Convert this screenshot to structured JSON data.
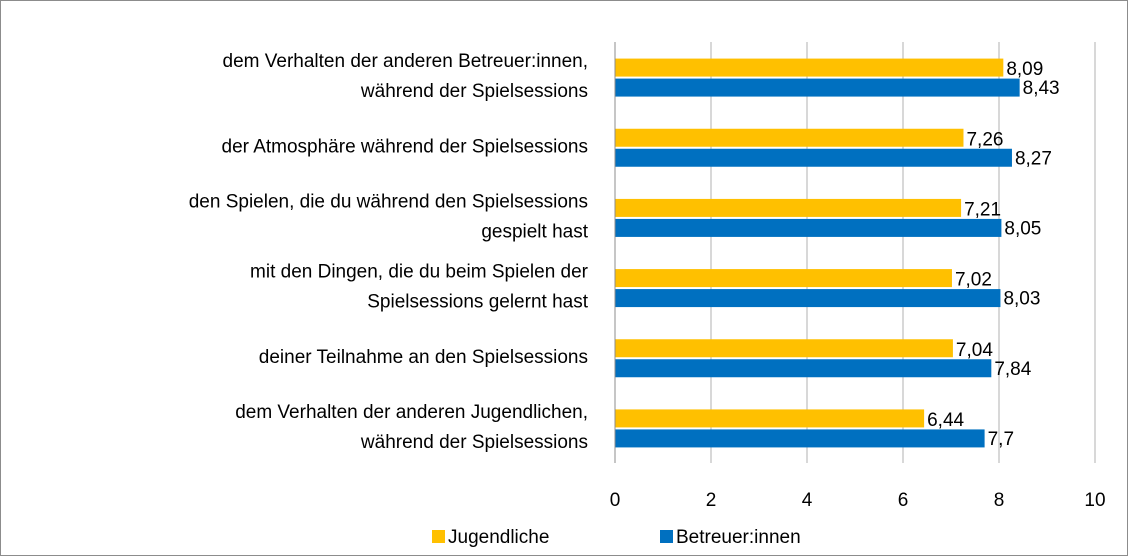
{
  "chart_data": {
    "type": "bar",
    "orientation": "horizontal",
    "categories": [
      [
        "dem Verhalten der anderen Betreuer:innen,",
        "während der Spielsessions"
      ],
      [
        "der Atmosphäre während der Spielsessions"
      ],
      [
        "den Spielen, die du während den Spielsessions",
        "gespielt hast"
      ],
      [
        "mit den Dingen, die du beim Spielen der",
        "Spielsessions gelernt hast"
      ],
      [
        "deiner Teilnahme an den Spielsessions"
      ],
      [
        "dem Verhalten der anderen Jugendlichen,",
        "während der Spielsessions"
      ]
    ],
    "series": [
      {
        "name": "Jugendliche",
        "color": "#ffc000",
        "values": [
          8.09,
          7.26,
          7.21,
          7.02,
          7.04,
          6.44
        ],
        "value_labels": [
          "8,09",
          "7,26",
          "7,21",
          "7,02",
          "7,04",
          "6,44"
        ]
      },
      {
        "name": "Betreuer:innen",
        "color": "#0070c0",
        "values": [
          8.43,
          8.27,
          8.05,
          8.03,
          7.84,
          7.7
        ],
        "value_labels": [
          "8,43",
          "8,27",
          "8,05",
          "8,03",
          "7,84",
          "7,7"
        ]
      }
    ],
    "xlim": [
      0,
      10
    ],
    "xticks": [
      0,
      2,
      4,
      6,
      8,
      10
    ],
    "grid": true,
    "legend": "bottom"
  }
}
